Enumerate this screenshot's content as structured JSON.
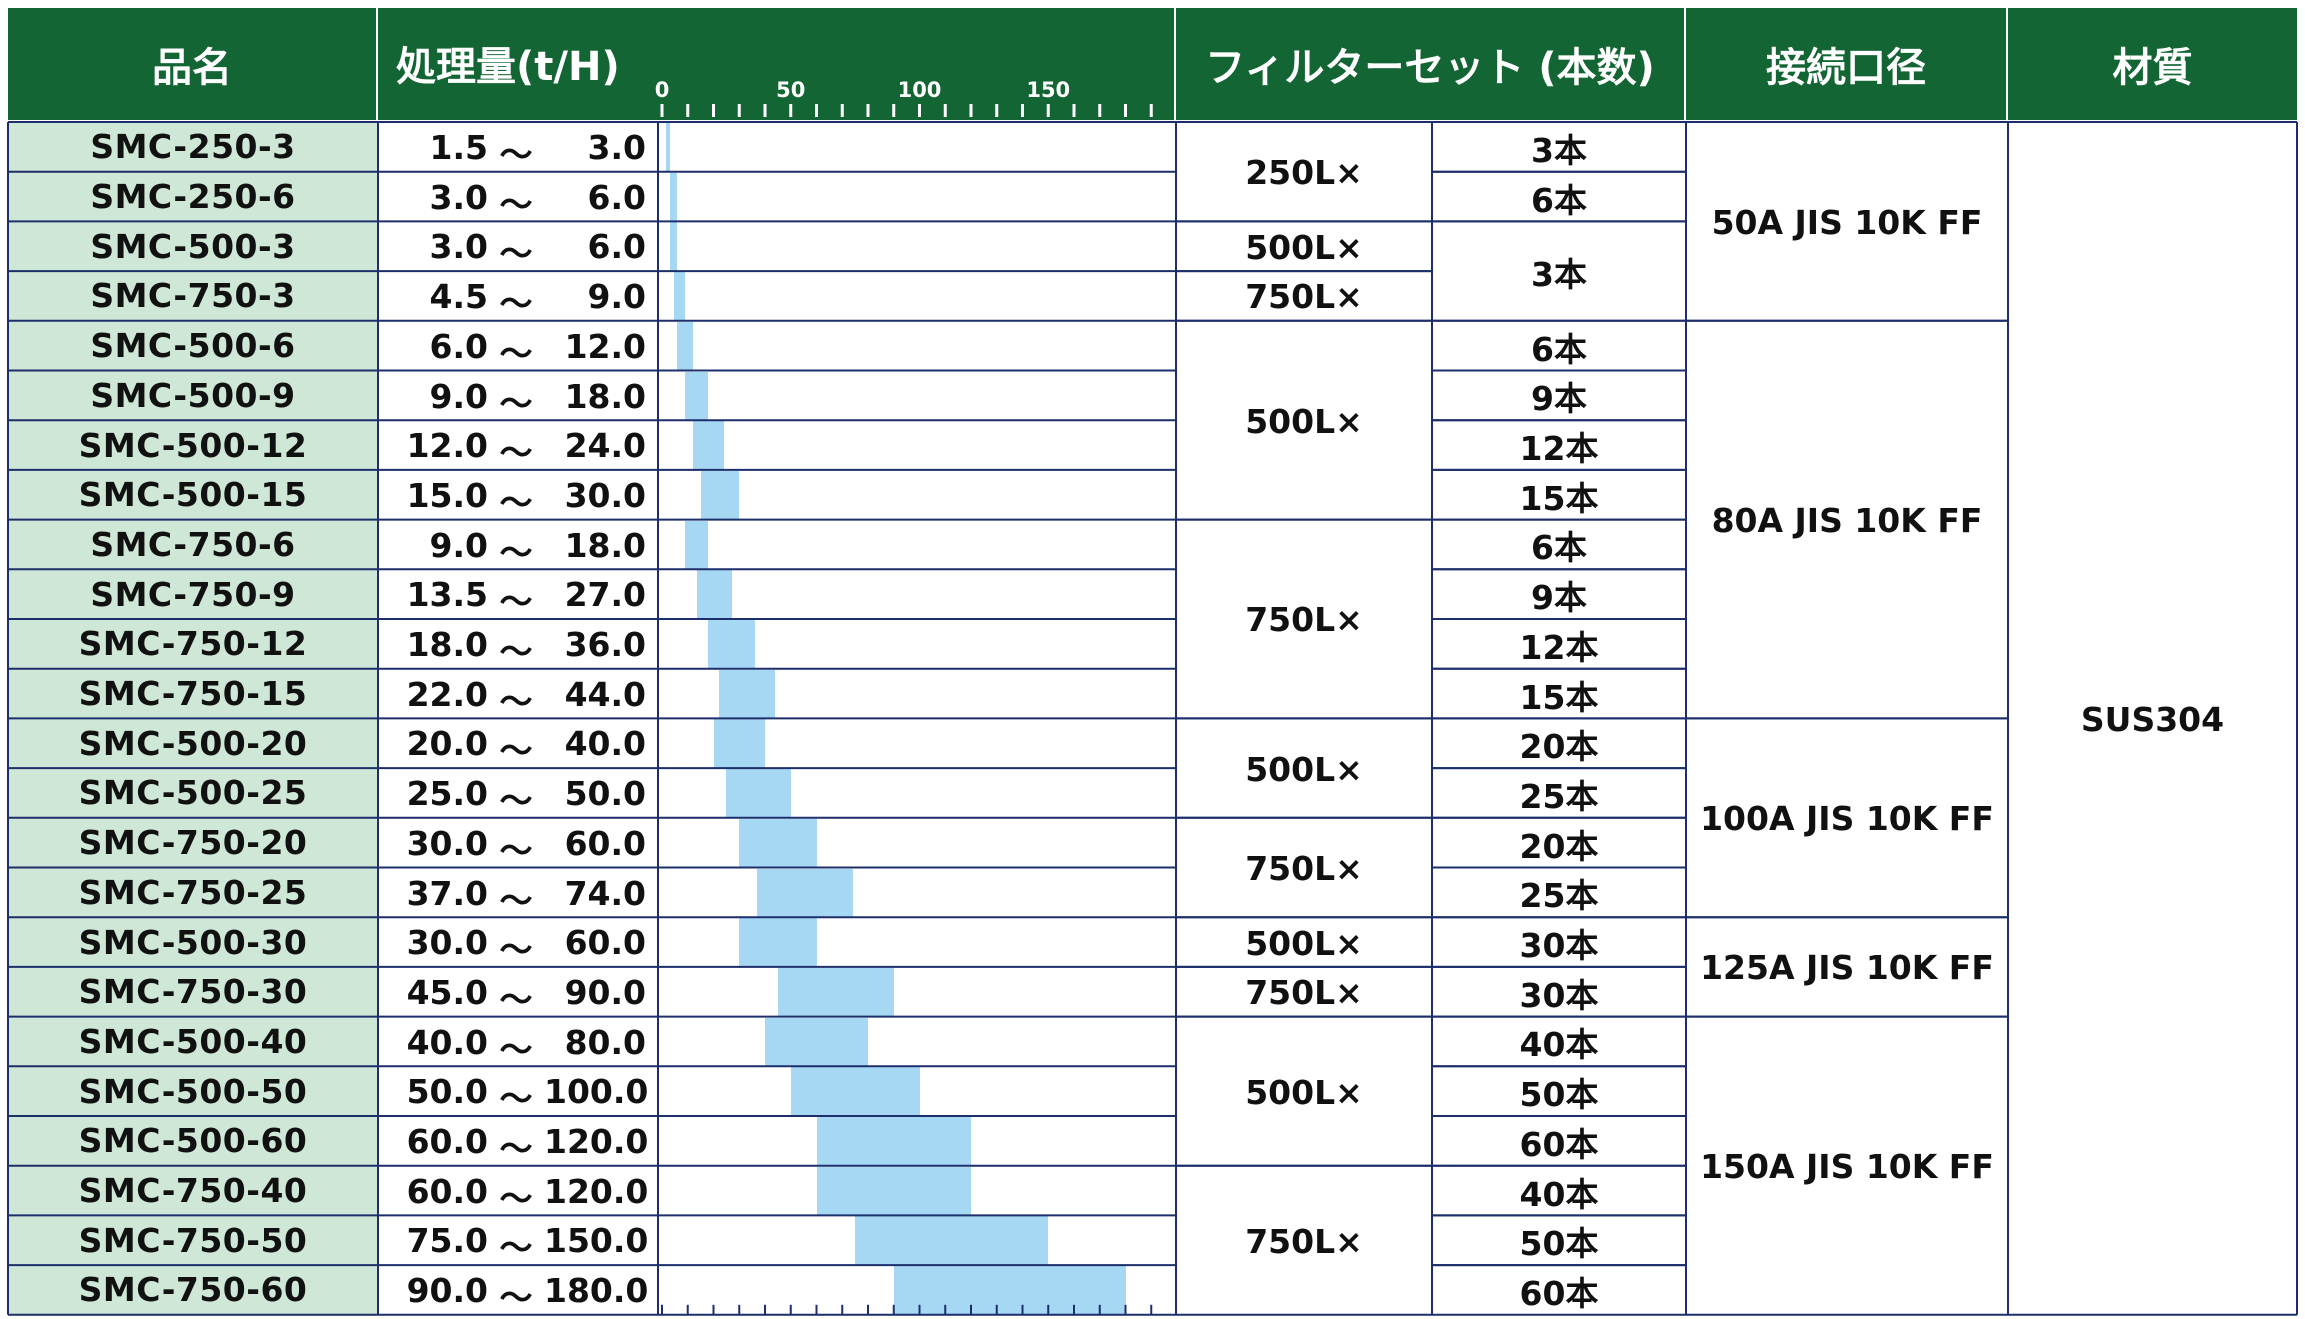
{
  "headers": {
    "name": "品名",
    "capacity": "処理量(t/H)",
    "filter_set": "フィルターセット (本数)",
    "connection": "接続口径",
    "material": "材質"
  },
  "axis": {
    "min": 0,
    "max": 200,
    "tick_step": 10,
    "labeled_ticks": [
      "0",
      "50",
      "100",
      "150"
    ]
  },
  "separator": "～",
  "rows": [
    {
      "name": "SMC-250-3",
      "low": "1.5",
      "high": "3.0",
      "lo": 1.5,
      "hi": 3.0
    },
    {
      "name": "SMC-250-6",
      "low": "3.0",
      "high": "6.0",
      "lo": 3.0,
      "hi": 6.0
    },
    {
      "name": "SMC-500-3",
      "low": "3.0",
      "high": "6.0",
      "lo": 3.0,
      "hi": 6.0
    },
    {
      "name": "SMC-750-3",
      "low": "4.5",
      "high": "9.0",
      "lo": 4.5,
      "hi": 9.0
    },
    {
      "name": "SMC-500-6",
      "low": "6.0",
      "high": "12.0",
      "lo": 6.0,
      "hi": 12.0
    },
    {
      "name": "SMC-500-9",
      "low": "9.0",
      "high": "18.0",
      "lo": 9.0,
      "hi": 18.0
    },
    {
      "name": "SMC-500-12",
      "low": "12.0",
      "high": "24.0",
      "lo": 12.0,
      "hi": 24.0
    },
    {
      "name": "SMC-500-15",
      "low": "15.0",
      "high": "30.0",
      "lo": 15.0,
      "hi": 30.0
    },
    {
      "name": "SMC-750-6",
      "low": "9.0",
      "high": "18.0",
      "lo": 9.0,
      "hi": 18.0
    },
    {
      "name": "SMC-750-9",
      "low": "13.5",
      "high": "27.0",
      "lo": 13.5,
      "hi": 27.0
    },
    {
      "name": "SMC-750-12",
      "low": "18.0",
      "high": "36.0",
      "lo": 18.0,
      "hi": 36.0
    },
    {
      "name": "SMC-750-15",
      "low": "22.0",
      "high": "44.0",
      "lo": 22.0,
      "hi": 44.0
    },
    {
      "name": "SMC-500-20",
      "low": "20.0",
      "high": "40.0",
      "lo": 20.0,
      "hi": 40.0
    },
    {
      "name": "SMC-500-25",
      "low": "25.0",
      "high": "50.0",
      "lo": 25.0,
      "hi": 50.0
    },
    {
      "name": "SMC-750-20",
      "low": "30.0",
      "high": "60.0",
      "lo": 30.0,
      "hi": 60.0
    },
    {
      "name": "SMC-750-25",
      "low": "37.0",
      "high": "74.0",
      "lo": 37.0,
      "hi": 74.0
    },
    {
      "name": "SMC-500-30",
      "low": "30.0",
      "high": "60.0",
      "lo": 30.0,
      "hi": 60.0
    },
    {
      "name": "SMC-750-30",
      "low": "45.0",
      "high": "90.0",
      "lo": 45.0,
      "hi": 90.0
    },
    {
      "name": "SMC-500-40",
      "low": "40.0",
      "high": "80.0",
      "lo": 40.0,
      "hi": 80.0
    },
    {
      "name": "SMC-500-50",
      "low": "50.0",
      "high": "100.0",
      "lo": 50.0,
      "hi": 100.0
    },
    {
      "name": "SMC-500-60",
      "low": "60.0",
      "high": "120.0",
      "lo": 60.0,
      "hi": 120.0
    },
    {
      "name": "SMC-750-40",
      "low": "60.0",
      "high": "120.0",
      "lo": 60.0,
      "hi": 120.0
    },
    {
      "name": "SMC-750-50",
      "low": "75.0",
      "high": "150.0",
      "lo": 75.0,
      "hi": 150.0
    },
    {
      "name": "SMC-750-60",
      "low": "90.0",
      "high": "180.0",
      "lo": 90.0,
      "hi": 180.0
    }
  ],
  "filter_sizes": [
    {
      "start": 0,
      "span": 2,
      "text": "250L×"
    },
    {
      "start": 2,
      "span": 1,
      "text": "500L×"
    },
    {
      "start": 3,
      "span": 1,
      "text": "750L×"
    },
    {
      "start": 4,
      "span": 4,
      "text": "500L×"
    },
    {
      "start": 8,
      "span": 4,
      "text": "750L×"
    },
    {
      "start": 12,
      "span": 2,
      "text": "500L×"
    },
    {
      "start": 14,
      "span": 2,
      "text": "750L×"
    },
    {
      "start": 16,
      "span": 1,
      "text": "500L×"
    },
    {
      "start": 17,
      "span": 1,
      "text": "750L×"
    },
    {
      "start": 18,
      "span": 3,
      "text": "500L×"
    },
    {
      "start": 21,
      "span": 3,
      "text": "750L×"
    }
  ],
  "filter_counts": [
    {
      "start": 0,
      "span": 1,
      "text": "3本"
    },
    {
      "start": 1,
      "span": 1,
      "text": "6本"
    },
    {
      "start": 2,
      "span": 2,
      "text": "3本"
    },
    {
      "start": 4,
      "span": 1,
      "text": "6本"
    },
    {
      "start": 5,
      "span": 1,
      "text": "9本"
    },
    {
      "start": 6,
      "span": 1,
      "text": "12本"
    },
    {
      "start": 7,
      "span": 1,
      "text": "15本"
    },
    {
      "start": 8,
      "span": 1,
      "text": "6本"
    },
    {
      "start": 9,
      "span": 1,
      "text": "9本"
    },
    {
      "start": 10,
      "span": 1,
      "text": "12本"
    },
    {
      "start": 11,
      "span": 1,
      "text": "15本"
    },
    {
      "start": 12,
      "span": 1,
      "text": "20本"
    },
    {
      "start": 13,
      "span": 1,
      "text": "25本"
    },
    {
      "start": 14,
      "span": 1,
      "text": "20本"
    },
    {
      "start": 15,
      "span": 1,
      "text": "25本"
    },
    {
      "start": 16,
      "span": 1,
      "text": "30本"
    },
    {
      "start": 17,
      "span": 1,
      "text": "30本"
    },
    {
      "start": 18,
      "span": 1,
      "text": "40本"
    },
    {
      "start": 19,
      "span": 1,
      "text": "50本"
    },
    {
      "start": 20,
      "span": 1,
      "text": "60本"
    },
    {
      "start": 21,
      "span": 1,
      "text": "40本"
    },
    {
      "start": 22,
      "span": 1,
      "text": "50本"
    },
    {
      "start": 23,
      "span": 1,
      "text": "60本"
    }
  ],
  "connections": [
    {
      "start": 0,
      "span": 4,
      "text": "50A JIS 10K FF"
    },
    {
      "start": 4,
      "span": 8,
      "text": "80A JIS 10K FF"
    },
    {
      "start": 12,
      "span": 4,
      "text": "100A JIS 10K FF"
    },
    {
      "start": 16,
      "span": 2,
      "text": "125A JIS 10K FF"
    },
    {
      "start": 18,
      "span": 6,
      "text": "150A JIS 10K FF"
    }
  ],
  "material": {
    "start": 0,
    "span": 24,
    "text": "SUS304"
  },
  "colors": {
    "header_bg": "#136534",
    "name_bg": "#cfe7d6",
    "bar": "#a6d8f4",
    "grid": "#1d2f6b"
  }
}
